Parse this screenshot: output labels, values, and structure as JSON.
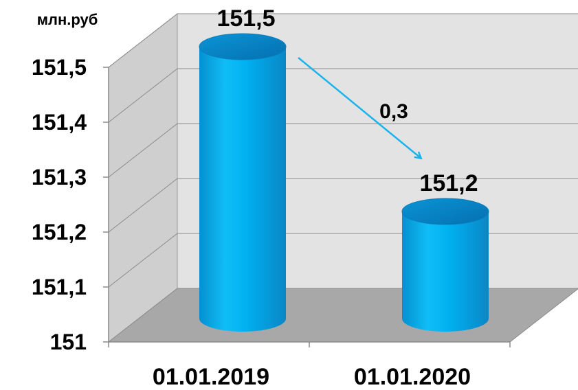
{
  "chart_data": {
    "type": "bar",
    "unit_label": "млн.руб",
    "categories": [
      "01.01.2019",
      "01.01.2020"
    ],
    "values": [
      151.5,
      151.2
    ],
    "data_labels": [
      "151,5",
      "151,2"
    ],
    "y_ticks": [
      "151",
      "151,1",
      "151,2",
      "151,3",
      "151,4",
      "151,5"
    ],
    "ylim": [
      151,
      151.5
    ],
    "grid": true,
    "legend": "none",
    "annotation": {
      "label": "0,3",
      "from_category": "01.01.2019",
      "to_category": "01.01.2020"
    },
    "colors": {
      "bar": "#00b0f0",
      "bar_dark": "#0088c8",
      "arrow": "#1ab3ea",
      "wall": "#e3e3e3",
      "floor": "#a8a8a8"
    }
  }
}
